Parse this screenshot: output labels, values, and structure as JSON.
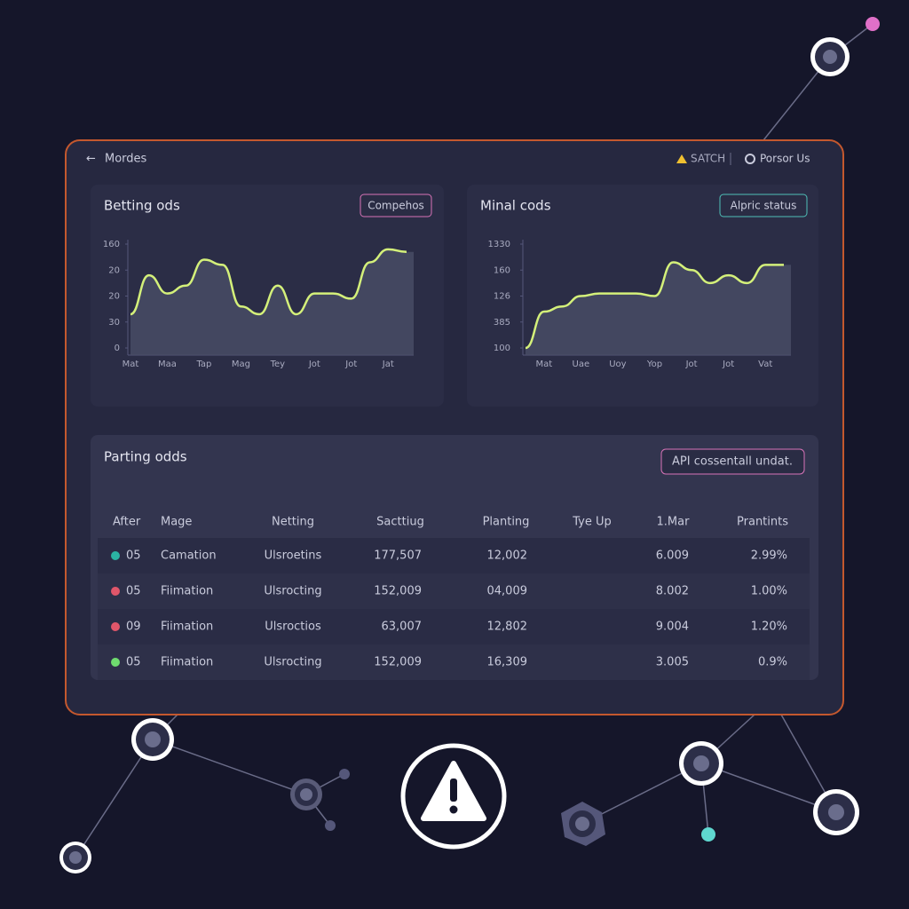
{
  "header": {
    "back_label": "Mordes",
    "search_label": "SATCH",
    "user_label": "Porsor Us"
  },
  "chart_data": [
    {
      "type": "area",
      "title": "Betting ods",
      "button": "Compehos",
      "color": "#d4f07a",
      "categories": [
        "Mat",
        null,
        "Maa",
        null,
        "Tap",
        null,
        "Mag",
        null,
        "Tey",
        null,
        "Jot",
        null,
        "Jot",
        null,
        "Jat",
        null
      ],
      "values": [
        1.3,
        2.8,
        2.1,
        2.4,
        3.4,
        3.2,
        1.6,
        1.3,
        2.4,
        1.3,
        2.1,
        2.1,
        1.9,
        3.3,
        3.8,
        3.7
      ],
      "ylim": [
        0,
        4
      ],
      "yticks": [
        {
          "value": 0,
          "label": "0"
        },
        {
          "value": 1,
          "label": "30"
        },
        {
          "value": 2,
          "label": "20"
        },
        {
          "value": 3,
          "label": "20"
        },
        {
          "value": 4,
          "label": "160"
        }
      ]
    },
    {
      "type": "area",
      "title": "Minal cods",
      "button": "Alpric status",
      "color": "#d4f07a",
      "categories": [
        null,
        "Mat",
        null,
        "Uae",
        null,
        "Uoy",
        null,
        "Yop",
        null,
        "Jot",
        null,
        "Jot",
        null,
        "Vat",
        null
      ],
      "values": [
        0,
        1.4,
        1.6,
        2.0,
        2.1,
        2.1,
        2.1,
        2.0,
        3.3,
        3.0,
        2.5,
        2.8,
        2.5,
        3.2,
        3.2
      ],
      "ylim": [
        0,
        4
      ],
      "yticks": [
        {
          "value": 0,
          "label": "100"
        },
        {
          "value": 1,
          "label": "385"
        },
        {
          "value": 2,
          "label": "126"
        },
        {
          "value": 3,
          "label": "160"
        },
        {
          "value": 4,
          "label": "1330"
        }
      ]
    }
  ],
  "table": {
    "title": "Parting odds",
    "button": "API cossentall undat.",
    "columns": [
      "After",
      "Mage",
      "Netting",
      "Sacttiug",
      "Planting",
      "Tye Up",
      "1.Mar",
      "Prantints"
    ],
    "rows": [
      {
        "color": "#2bb3a3",
        "cells": [
          "05",
          "Camation",
          "Ulsroetins",
          "177,507",
          "12,002",
          null,
          "6.009",
          "2.99%"
        ]
      },
      {
        "color": "#e0566a",
        "cells": [
          "05",
          "Fiimation",
          "Ulsrocting",
          "152,009",
          "04,009",
          null,
          "8.002",
          "1.00%"
        ]
      },
      {
        "color": "#e0566a",
        "cells": [
          "09",
          "Fiimation",
          "Ulsroctios",
          "63,007",
          "12,802",
          null,
          "9.004",
          "1.20%"
        ]
      },
      {
        "color": "#6fdc6f",
        "cells": [
          "05",
          "Fiimation",
          "Ulsrocting",
          "152,009",
          "16,309",
          null,
          "3.005",
          "0.9%"
        ]
      }
    ]
  }
}
